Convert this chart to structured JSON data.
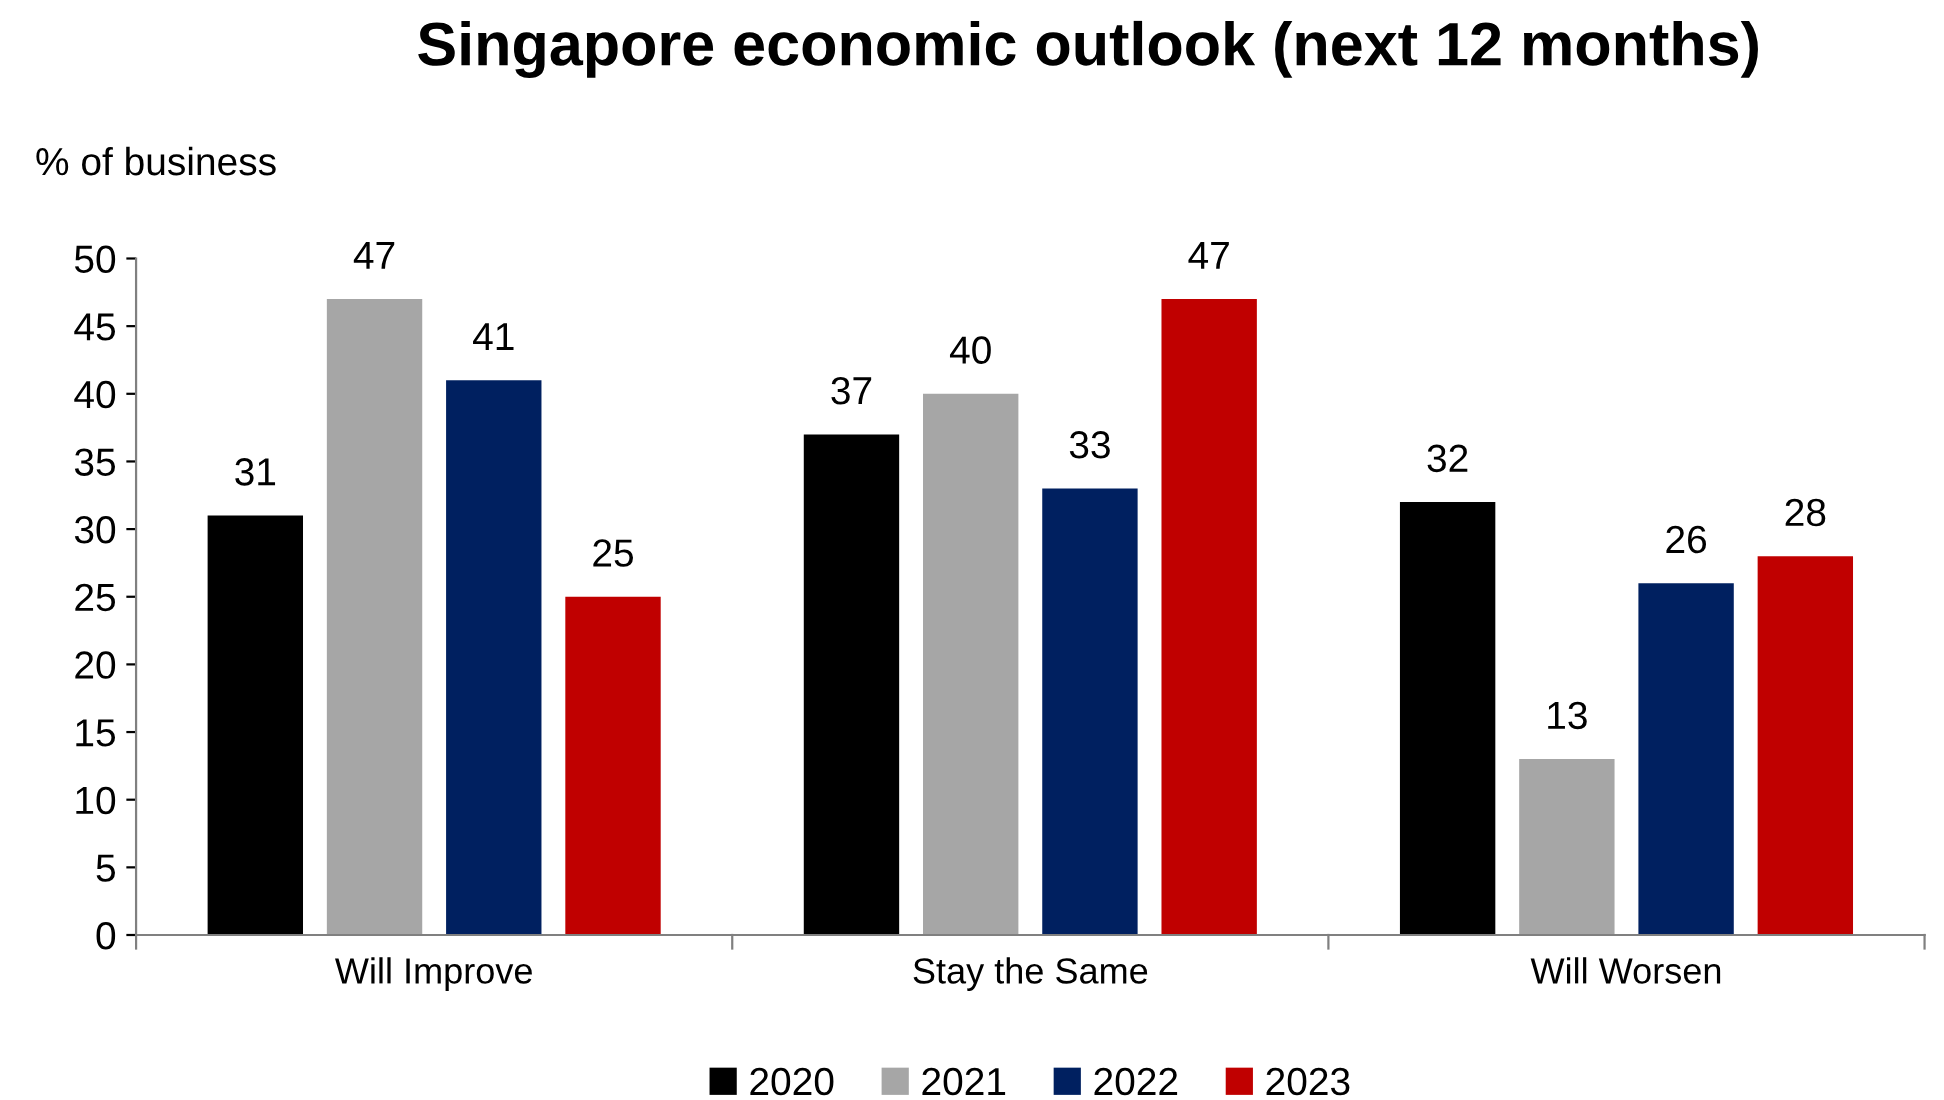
{
  "chart_data": {
    "type": "bar",
    "title": "Singapore economic outlook (next 12 months)",
    "ylabel": "% of business",
    "categories": [
      "Will Improve",
      "Stay the Same",
      "Will Worsen"
    ],
    "series": [
      {
        "name": "2020",
        "color": "#000000",
        "values": [
          31,
          37,
          32
        ]
      },
      {
        "name": "2021",
        "color": "#a6a6a6",
        "values": [
          47,
          40,
          13
        ]
      },
      {
        "name": "2022",
        "color": "#002060",
        "values": [
          41,
          33,
          26
        ]
      },
      {
        "name": "2023",
        "color": "#c00000",
        "values": [
          25,
          47,
          28
        ]
      }
    ],
    "ylim": [
      0,
      50
    ],
    "yticks": [
      0,
      5,
      10,
      15,
      20,
      25,
      30,
      35,
      40,
      45,
      50
    ],
    "data_labels": true,
    "legend": "bottom",
    "grid": false
  }
}
